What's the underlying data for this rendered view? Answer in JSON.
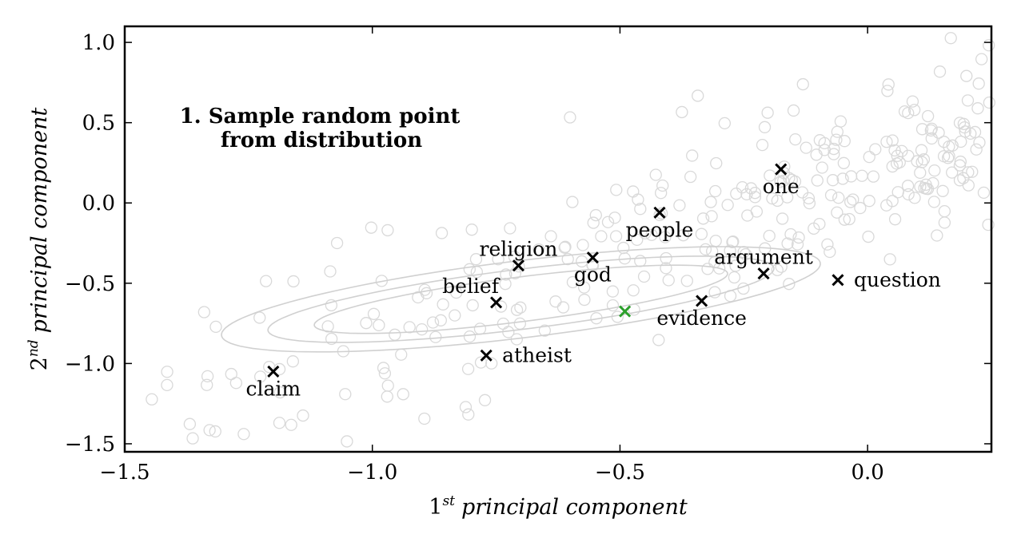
{
  "chart_data": {
    "type": "scatter",
    "title": "",
    "annotation": {
      "line1": "1. Sample random point",
      "line2": "from distribution"
    },
    "xlabel": {
      "number": "1",
      "sup": "st",
      "text": "principal component"
    },
    "ylabel": {
      "number": "2",
      "sup": "nd",
      "text": "principal component"
    },
    "xlim": [
      -1.5,
      0.25
    ],
    "ylim": [
      -1.55,
      1.1
    ],
    "xticks": [
      {
        "value": -1.5,
        "label": "−1.5"
      },
      {
        "value": -1.0,
        "label": "−1.0"
      },
      {
        "value": -0.5,
        "label": "−0.5"
      },
      {
        "value": 0.0,
        "label": "0.0"
      }
    ],
    "yticks": [
      {
        "value": 1.0,
        "label": "1.0"
      },
      {
        "value": 0.5,
        "label": "0.5"
      },
      {
        "value": 0.0,
        "label": "0.0"
      },
      {
        "value": -0.5,
        "label": "−0.5"
      },
      {
        "value": -1.0,
        "label": "−1.0"
      },
      {
        "value": -1.5,
        "label": "−1.5"
      }
    ],
    "grid": false,
    "labeled_points": [
      {
        "label": "one",
        "x": -0.175,
        "y": 0.21,
        "label_pos": "below"
      },
      {
        "label": "people",
        "x": -0.42,
        "y": -0.06,
        "label_pos": "below"
      },
      {
        "label": "religion",
        "x": -0.705,
        "y": -0.39,
        "label_pos": "above"
      },
      {
        "label": "god",
        "x": -0.555,
        "y": -0.34,
        "label_pos": "below"
      },
      {
        "label": "argument",
        "x": -0.21,
        "y": -0.44,
        "label_pos": "above"
      },
      {
        "label": "question",
        "x": -0.06,
        "y": -0.48,
        "label_pos": "right"
      },
      {
        "label": "belief",
        "x": -0.75,
        "y": -0.62,
        "label_pos": "above-left"
      },
      {
        "label": "evidence",
        "x": -0.335,
        "y": -0.61,
        "label_pos": "below"
      },
      {
        "label": "atheist",
        "x": -0.77,
        "y": -0.95,
        "label_pos": "right"
      },
      {
        "label": "claim",
        "x": -1.2,
        "y": -1.05,
        "label_pos": "below"
      }
    ],
    "sampled_point": {
      "x": -0.49,
      "y": -0.675
    },
    "distribution": {
      "center": [
        -0.7,
        -0.6
      ],
      "angle_deg": 23,
      "contours": [
        {
          "a": 0.45,
          "b": 0.13
        },
        {
          "a": 0.55,
          "b": 0.175
        },
        {
          "a": 0.65,
          "b": 0.225
        }
      ]
    },
    "background_point_count": 320,
    "colors": {
      "labeled": "#000000",
      "sampled": "#2ca02c",
      "background": "#d9d9d9",
      "contour": "#d0d0d0"
    }
  }
}
